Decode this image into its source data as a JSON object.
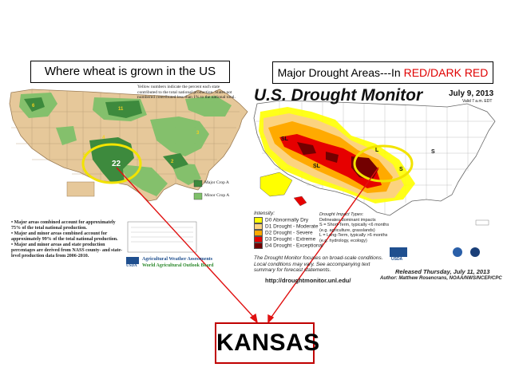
{
  "titles": {
    "left": "Where wheat is grown in the US",
    "right_prefix": "Major Drought Areas---In ",
    "right_highlight": "RED/DARK RED"
  },
  "result_box": {
    "label": "KANSAS"
  },
  "wheat_map": {
    "header_note": "Yellow numbers indicate the percent each state contributed to the total national production. States not numbered contributed less than 1% to the national total.",
    "highlight_value": "22",
    "legend": [
      "Major Crop A",
      "Minor Crop A"
    ],
    "bullets": [
      "Major areas combined account for approximately 75% of the total national production.",
      "Major and minor areas combined account for approximately 99% of the total national production.",
      "Major and minor areas and state production percentages are derived from NASS county- and state-level production data from 2006-2010."
    ],
    "footer_org": "USDA",
    "footer_line1": "Agricultural Weather Assessments",
    "footer_line2": "World Agricultural Outlook Board",
    "colors": {
      "major": "#3d8a3d",
      "minor": "#7fc06a",
      "land": "#e6c89a"
    }
  },
  "drought_monitor": {
    "title": "U.S. Drought Monitor",
    "date": "July 9, 2013",
    "valid": "Valid 7 a.m. EDT",
    "intensity_label": "Intensity:",
    "intensity": [
      {
        "label": "D0 Abnormally Dry",
        "color": "#ffff00"
      },
      {
        "label": "D1 Drought - Moderate",
        "color": "#fcd37f"
      },
      {
        "label": "D2 Drought - Severe",
        "color": "#ffaa00"
      },
      {
        "label": "D3 Drought - Extreme",
        "color": "#e60000"
      },
      {
        "label": "D4 Drought - Exceptional",
        "color": "#730000"
      }
    ],
    "impact_label": "Drought Impact Types:",
    "impacts": [
      "Delineates dominant impacts",
      "S = Short-Term, typically <6 months (e.g. agriculture, grasslands)",
      "L = Long-Term, typically >6 months (e.g. hydrology, ecology)"
    ],
    "note": "The Drought Monitor focuses on broad-scale conditions. Local conditions may vary. See accompanying text summary for forecast statements.",
    "url": "http://droughtmonitor.unl.edu/",
    "released": "Released Thursday, July 11, 2013",
    "author": "Author: Matthew Rosencrans, NOAA/NWS/NCEP/CPC",
    "logo": "USDA"
  },
  "annotations": {
    "arrow_color": "#e01010",
    "circle_color": "#f2e300"
  }
}
